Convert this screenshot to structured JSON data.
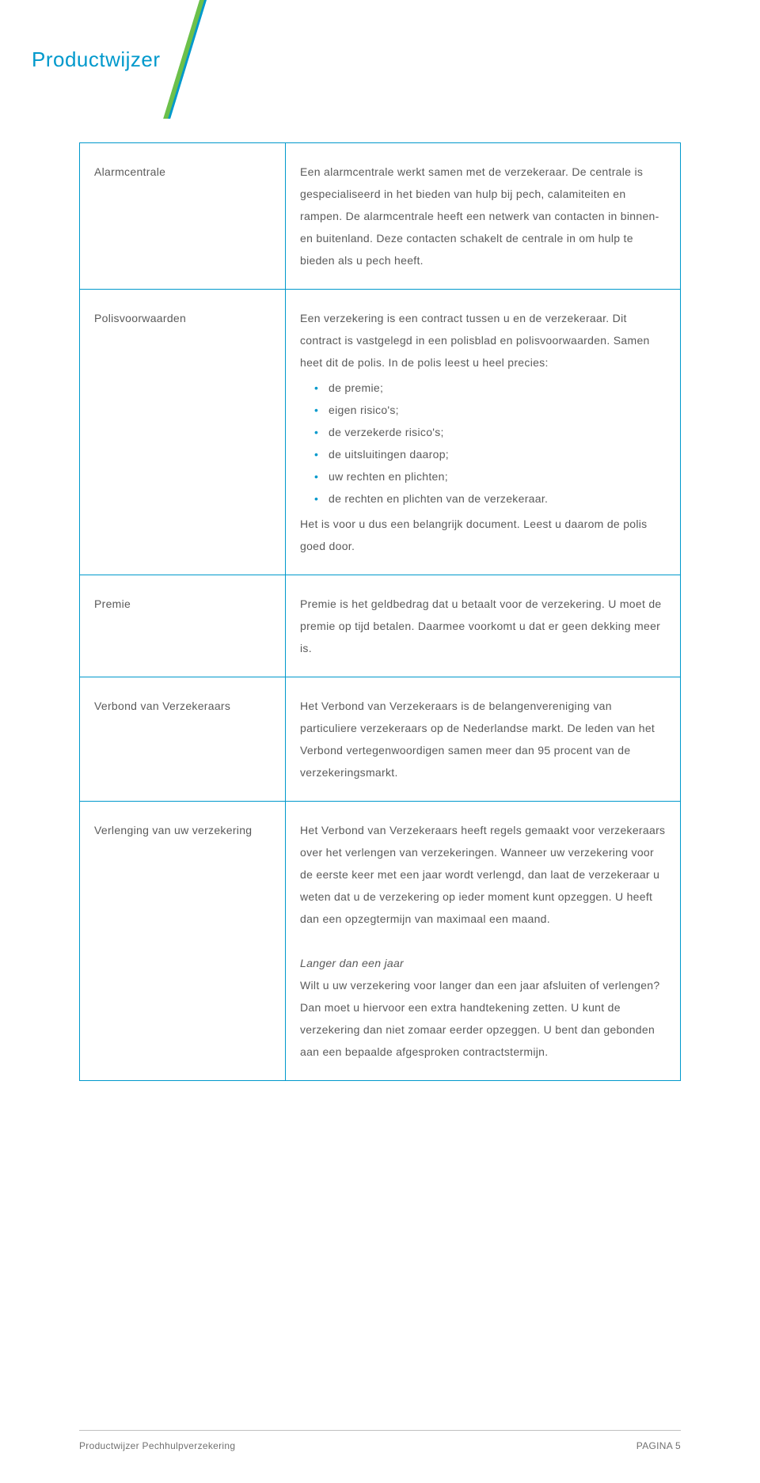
{
  "header": {
    "title": "Productwijzer"
  },
  "colors": {
    "brand_blue": "#0099cc",
    "brand_green": "#6cc04a",
    "text": "#5a5a5a",
    "border": "#0099cc",
    "footer_rule": "#c0c0c0"
  },
  "rows": [
    {
      "term": "Alarmcentrale",
      "def_html": "Een alarmcentrale werkt samen met de verzekeraar. De centrale is gespecialiseerd in het bieden van hulp bij pech, calamiteiten en rampen. De alarmcentrale heeft een netwerk van contacten in binnen- en buitenland. Deze contacten schakelt de centrale in om hulp te bieden als u pech heeft."
    },
    {
      "term": "Polisvoorwaarden",
      "def_intro": "Een verzekering is een contract tussen u en de verzekeraar. Dit contract is vastgelegd in een polisblad en polisvoorwaarden. Samen heet dit de polis. In de polis leest u heel precies:",
      "bullets": [
        "de premie;",
        "eigen risico's;",
        "de verzekerde risico's;",
        "de uitsluitingen daarop;",
        "uw rechten en plichten;",
        "de rechten en plichten van de verzekeraar."
      ],
      "def_outro": "Het is voor u dus een belangrijk document. Leest u daarom de polis goed door."
    },
    {
      "term": "Premie",
      "def_html": "Premie is het geldbedrag dat u betaalt voor de verzekering. U moet de premie op tijd betalen. Daarmee voorkomt u dat er geen dekking meer is."
    },
    {
      "term": "Verbond van Verzekeraars",
      "def_html": "Het Verbond van Verzekeraars is de belangen­vereniging van particuliere verzekeraars op de Nederlandse markt. De leden van het Verbond vertegenwoordigen samen meer dan 95 procent van de verzekeringsmarkt."
    },
    {
      "term": "Verlenging van uw verzekering",
      "def_para1": "Het Verbond van Verzekeraars heeft regels gemaakt voor verzekeraars over het verlengen van verzekeringen. Wanneer uw verzekering voor de eerste keer met een jaar wordt verlengd, dan laat de verzekeraar u weten dat u de verzekering op ieder moment kunt opzeggen. U heeft dan een opzegtermijn van maximaal een maand.",
      "sub_heading": "Langer dan een jaar",
      "def_para2": "Wilt u uw verzekering voor langer dan een jaar afsluiten of verlengen? Dan moet u hiervoor een extra handtekening zetten. U kunt de verzekering dan niet zomaar eerder opzeggen. U bent dan gebonden aan een bepaalde afgesproken contractstermijn."
    }
  ],
  "footer": {
    "doc_title": "Productwijzer Pechhulpverzekering",
    "page_label": "PAGINA 5"
  }
}
